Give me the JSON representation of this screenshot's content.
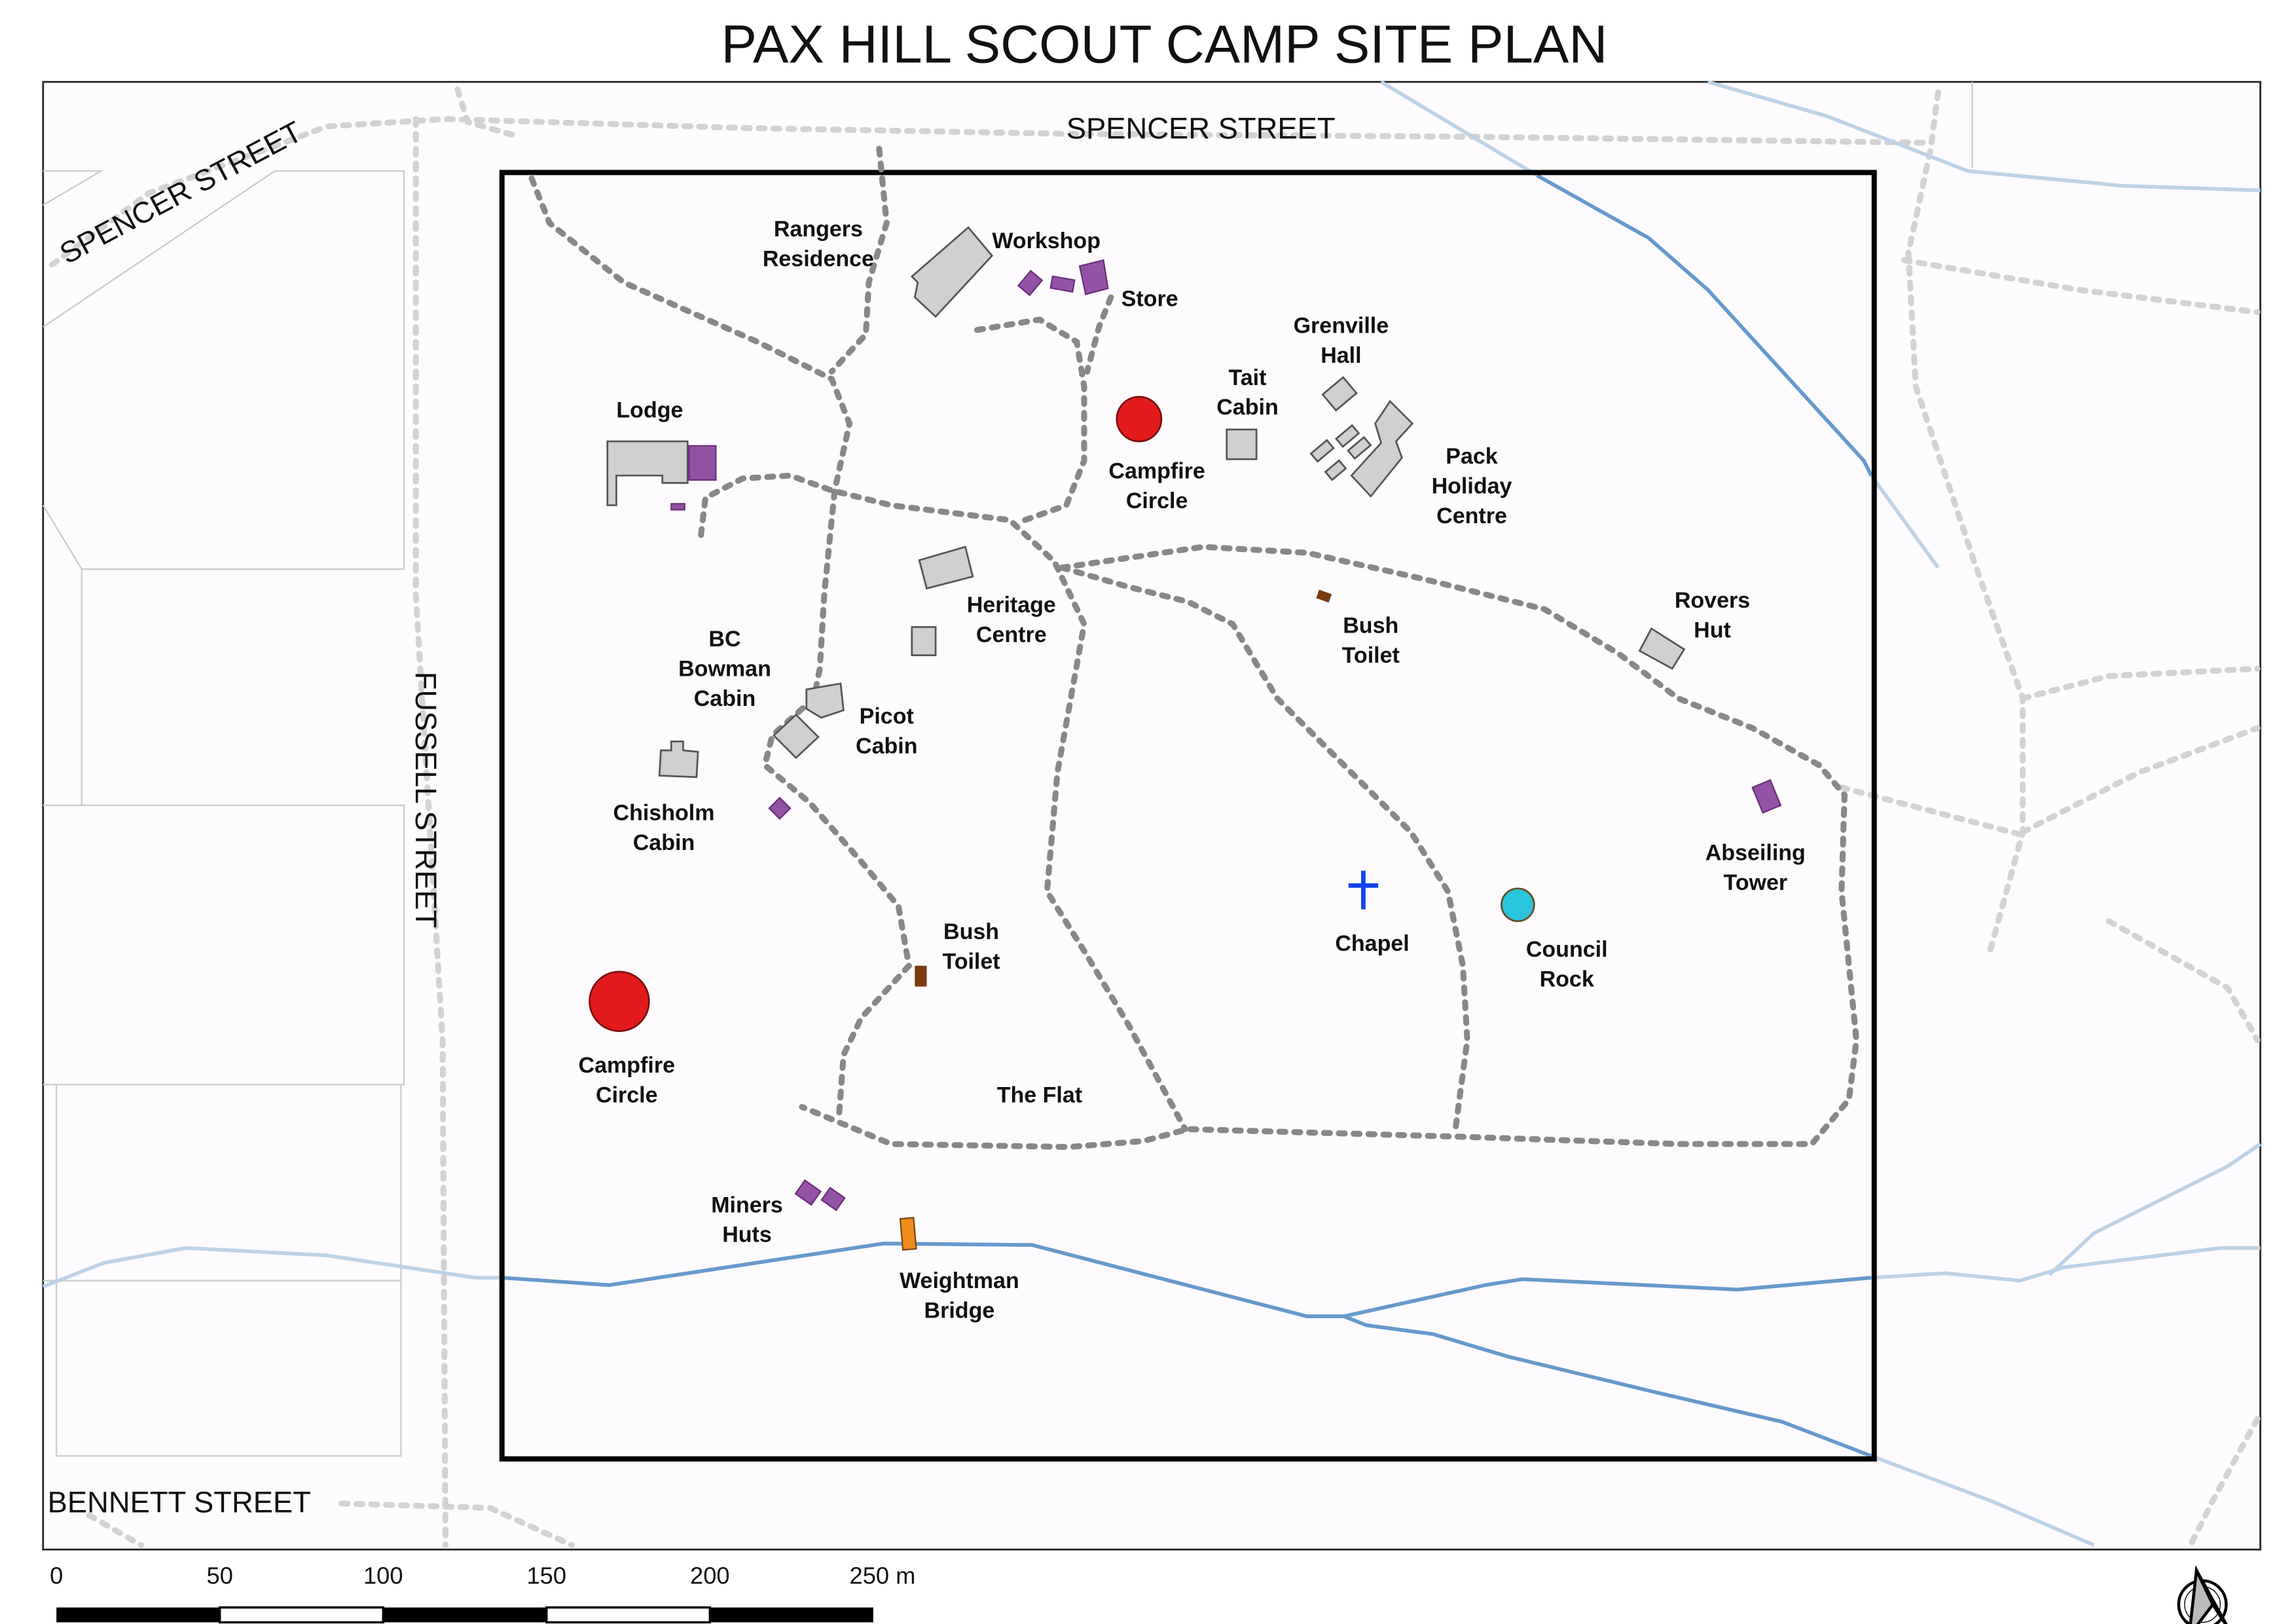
{
  "title": "PAX HILL SCOUT CAMP SITE PLAN",
  "streets": [
    "SPENCER STREET",
    "SPENCER STREET",
    "FUSSELL STREET",
    "BENNETT STREET"
  ],
  "labels": {
    "rangers": [
      "Rangers",
      "Residence"
    ],
    "workshop": "Workshop",
    "store": "Store",
    "grenville": [
      "Grenville",
      "Hall"
    ],
    "tait": [
      "Tait",
      "Cabin"
    ],
    "lodge": "Lodge",
    "campfire1": [
      "Campfire",
      "Circle"
    ],
    "pack": [
      "Pack",
      "Holiday",
      "Centre"
    ],
    "heritage": [
      "Heritage",
      "Centre"
    ],
    "bushtoilet1": [
      "Bush",
      "Toilet"
    ],
    "rovers": [
      "Rovers",
      "Hut"
    ],
    "bowman": [
      "BC",
      "Bowman",
      "Cabin"
    ],
    "picot": [
      "Picot",
      "Cabin"
    ],
    "chisholm": [
      "Chisholm",
      "Cabin"
    ],
    "abseiling": [
      "Abseiling",
      "Tower"
    ],
    "chapel": "Chapel",
    "council": [
      "Council",
      "Rock"
    ],
    "bushtoilet2": [
      "Bush",
      "Toilet"
    ],
    "campfire2": [
      "Campfire",
      "Circle"
    ],
    "flat": "The Flat",
    "miners": [
      "Miners",
      "Huts"
    ],
    "weightman": [
      "Weightman",
      "Bridge"
    ]
  },
  "scale_bar": {
    "ticks": [
      "0",
      "50",
      "100",
      "150",
      "200",
      "250 m"
    ]
  },
  "north_arrow": "north-arrow-icon",
  "colors": {
    "building": "#d0d0d0",
    "storage": "#9452a5",
    "campfire": "#e31a1c",
    "council_rock": "#29c5db",
    "chapel_cross": "#1144ee",
    "toilet": "#7a3b10",
    "bridge": "#f08c1a",
    "creek": "#6699cc",
    "track": "#888888"
  }
}
